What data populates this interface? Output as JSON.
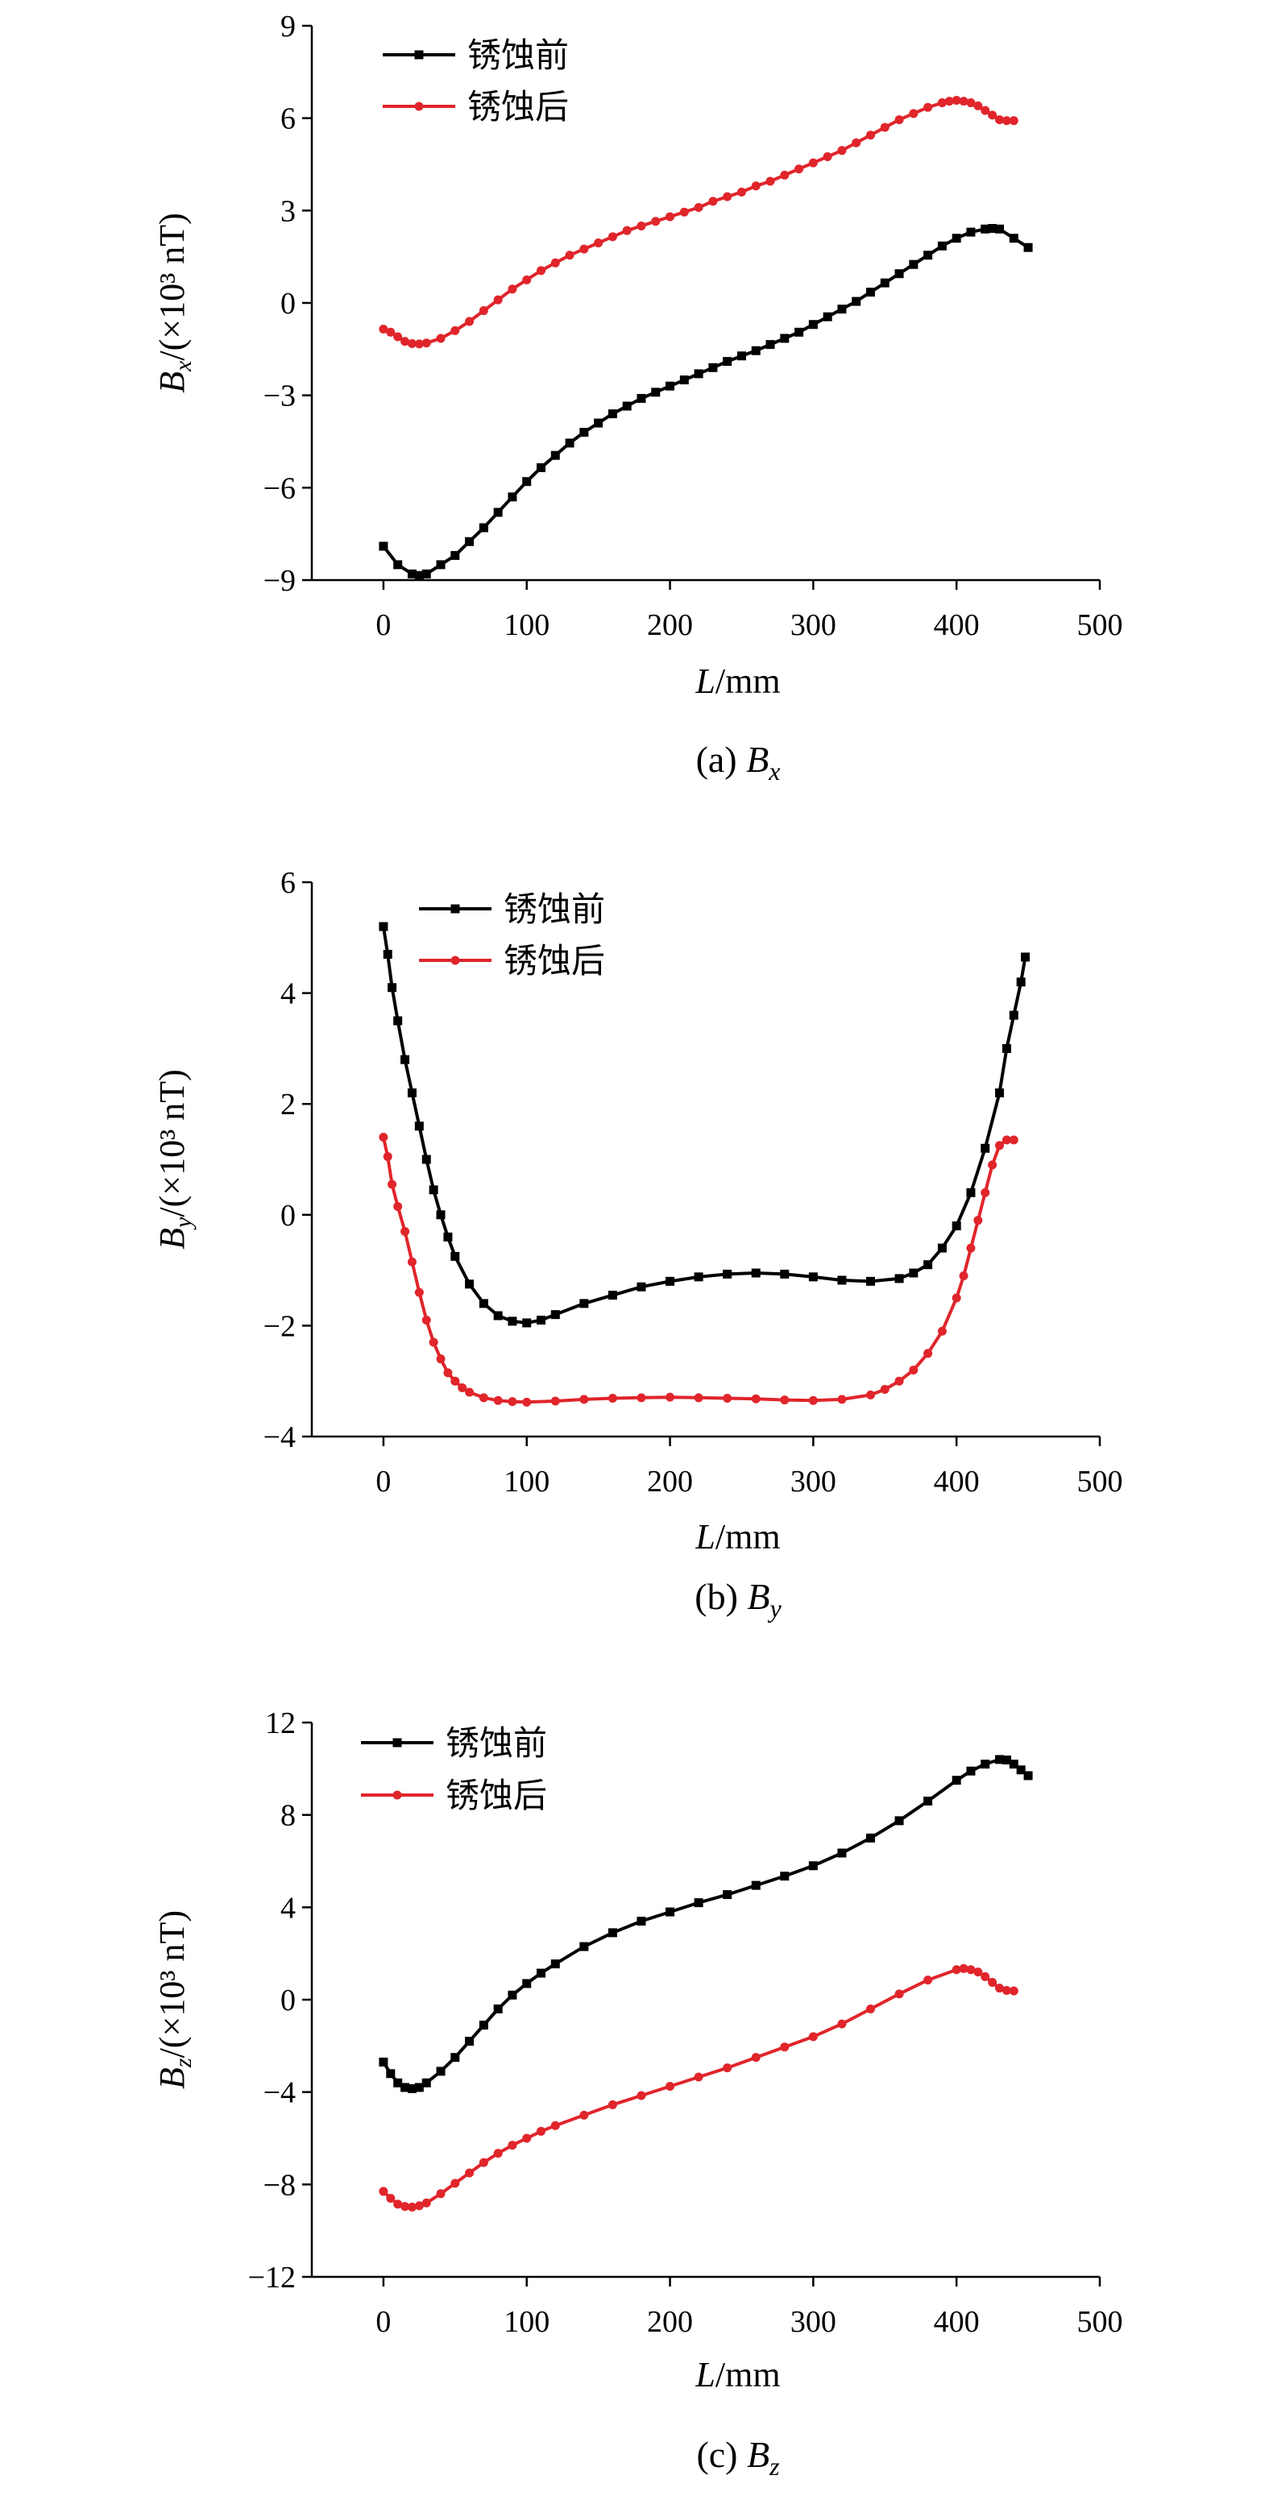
{
  "chart_data": [
    {
      "type": "line",
      "panel": "a",
      "caption": {
        "prefix": "(a) ",
        "sym": "B",
        "sub": "x"
      },
      "ylabel": {
        "sym": "B",
        "sub": "x",
        "rest": "/(×10³ nT)"
      },
      "xlabel": {
        "sym": "L",
        "rest": "/mm"
      },
      "xlim": [
        -50,
        500
      ],
      "ylim": [
        -9,
        9
      ],
      "xticks": [
        0,
        100,
        200,
        300,
        400,
        500
      ],
      "yticks": [
        -9,
        -6,
        -3,
        0,
        3,
        6,
        9
      ],
      "ytick_labels": [
        "−9",
        "−6",
        "−3",
        "0",
        "3",
        "6",
        "9"
      ],
      "grid": false,
      "legend_position": "top-left",
      "series": [
        {
          "name": "锈蚀前",
          "color": "#000000",
          "marker": "square",
          "x": [
            0,
            10,
            20,
            25,
            30,
            40,
            50,
            60,
            70,
            80,
            90,
            100,
            110,
            120,
            130,
            140,
            150,
            160,
            170,
            180,
            190,
            200,
            210,
            220,
            230,
            240,
            250,
            260,
            270,
            280,
            290,
            300,
            310,
            320,
            330,
            340,
            350,
            360,
            370,
            380,
            390,
            400,
            410,
            420,
            425,
            430,
            440,
            450
          ],
          "y": [
            -7.9,
            -8.5,
            -8.8,
            -8.85,
            -8.8,
            -8.5,
            -8.2,
            -7.75,
            -7.3,
            -6.8,
            -6.3,
            -5.8,
            -5.35,
            -4.95,
            -4.55,
            -4.2,
            -3.9,
            -3.6,
            -3.35,
            -3.1,
            -2.9,
            -2.7,
            -2.5,
            -2.3,
            -2.1,
            -1.9,
            -1.72,
            -1.55,
            -1.35,
            -1.15,
            -0.95,
            -0.7,
            -0.45,
            -0.2,
            0.05,
            0.35,
            0.65,
            0.95,
            1.25,
            1.55,
            1.85,
            2.1,
            2.3,
            2.4,
            2.42,
            2.4,
            2.1,
            1.8
          ]
        },
        {
          "name": "锈蚀后",
          "color": "#e0252b",
          "marker": "circle",
          "x": [
            0,
            5,
            10,
            15,
            20,
            25,
            30,
            40,
            50,
            60,
            70,
            80,
            90,
            100,
            110,
            120,
            130,
            140,
            150,
            160,
            170,
            180,
            190,
            200,
            210,
            220,
            230,
            240,
            250,
            260,
            270,
            280,
            290,
            300,
            310,
            320,
            330,
            340,
            350,
            360,
            370,
            380,
            390,
            395,
            400,
            405,
            410,
            415,
            420,
            425,
            430,
            435,
            440
          ],
          "y": [
            -0.85,
            -0.95,
            -1.1,
            -1.25,
            -1.32,
            -1.33,
            -1.3,
            -1.15,
            -0.9,
            -0.6,
            -0.25,
            0.1,
            0.45,
            0.75,
            1.05,
            1.3,
            1.55,
            1.75,
            1.95,
            2.15,
            2.35,
            2.5,
            2.65,
            2.8,
            2.95,
            3.1,
            3.3,
            3.45,
            3.6,
            3.8,
            3.95,
            4.15,
            4.35,
            4.55,
            4.75,
            4.95,
            5.2,
            5.45,
            5.7,
            5.95,
            6.15,
            6.35,
            6.5,
            6.55,
            6.58,
            6.55,
            6.5,
            6.4,
            6.25,
            6.1,
            5.95,
            5.92,
            5.92
          ]
        }
      ]
    },
    {
      "type": "line",
      "panel": "b",
      "caption": {
        "prefix": "(b) ",
        "sym": "B",
        "sub": "y"
      },
      "ylabel": {
        "sym": "B",
        "sub": "y",
        "rest": "/(×10³ nT)"
      },
      "xlabel": {
        "sym": "L",
        "rest": "/mm"
      },
      "xlim": [
        -50,
        500
      ],
      "ylim": [
        -4,
        6
      ],
      "xticks": [
        0,
        100,
        200,
        300,
        400,
        500
      ],
      "yticks": [
        -4,
        -2,
        0,
        2,
        4,
        6
      ],
      "ytick_labels": [
        "−4",
        "−2",
        "0",
        "2",
        "4",
        "6"
      ],
      "grid": false,
      "legend_position": "top-left",
      "series": [
        {
          "name": "锈蚀前",
          "color": "#000000",
          "marker": "square",
          "x": [
            0,
            3,
            6,
            10,
            15,
            20,
            25,
            30,
            35,
            40,
            45,
            50,
            60,
            70,
            80,
            90,
            100,
            110,
            120,
            140,
            160,
            180,
            200,
            220,
            240,
            260,
            280,
            300,
            320,
            340,
            360,
            370,
            380,
            390,
            400,
            410,
            420,
            430,
            435,
            440,
            445,
            448
          ],
          "y": [
            5.2,
            4.7,
            4.1,
            3.5,
            2.8,
            2.2,
            1.6,
            1.0,
            0.45,
            0.0,
            -0.4,
            -0.75,
            -1.25,
            -1.6,
            -1.82,
            -1.92,
            -1.95,
            -1.9,
            -1.8,
            -1.6,
            -1.45,
            -1.3,
            -1.2,
            -1.12,
            -1.07,
            -1.05,
            -1.07,
            -1.12,
            -1.18,
            -1.2,
            -1.15,
            -1.05,
            -0.9,
            -0.6,
            -0.2,
            0.4,
            1.2,
            2.2,
            3.0,
            3.6,
            4.2,
            4.65
          ]
        },
        {
          "name": "锈蚀后",
          "color": "#e0252b",
          "marker": "circle",
          "x": [
            0,
            3,
            6,
            10,
            15,
            20,
            25,
            30,
            35,
            40,
            45,
            50,
            55,
            60,
            70,
            80,
            90,
            100,
            120,
            140,
            160,
            180,
            200,
            220,
            240,
            260,
            280,
            300,
            320,
            340,
            350,
            360,
            370,
            380,
            390,
            400,
            405,
            410,
            415,
            420,
            425,
            430,
            435,
            440
          ],
          "y": [
            1.4,
            1.05,
            0.55,
            0.15,
            -0.3,
            -0.85,
            -1.4,
            -1.9,
            -2.3,
            -2.6,
            -2.85,
            -3.0,
            -3.12,
            -3.2,
            -3.3,
            -3.35,
            -3.37,
            -3.38,
            -3.36,
            -3.33,
            -3.31,
            -3.3,
            -3.29,
            -3.3,
            -3.31,
            -3.32,
            -3.34,
            -3.35,
            -3.33,
            -3.25,
            -3.15,
            -3.0,
            -2.8,
            -2.5,
            -2.1,
            -1.5,
            -1.1,
            -0.6,
            -0.1,
            0.4,
            0.9,
            1.25,
            1.35,
            1.35
          ]
        }
      ]
    },
    {
      "type": "line",
      "panel": "c",
      "caption": {
        "prefix": "(c) ",
        "sym": "B",
        "sub": "z"
      },
      "ylabel": {
        "sym": "B",
        "sub": "z",
        "rest": "/(×10³ nT)"
      },
      "xlabel": {
        "sym": "L",
        "rest": "/mm"
      },
      "xlim": [
        -50,
        500
      ],
      "ylim": [
        -12,
        12
      ],
      "xticks": [
        0,
        100,
        200,
        300,
        400,
        500
      ],
      "yticks": [
        -12,
        -8,
        -4,
        0,
        4,
        8,
        12
      ],
      "ytick_labels": [
        "−12",
        "−8",
        "−4",
        "0",
        "4",
        "8",
        "12"
      ],
      "grid": false,
      "legend_position": "top-left",
      "series": [
        {
          "name": "锈蚀前",
          "color": "#000000",
          "marker": "square",
          "x": [
            0,
            5,
            10,
            15,
            20,
            25,
            30,
            40,
            50,
            60,
            70,
            80,
            90,
            100,
            110,
            120,
            140,
            160,
            180,
            200,
            220,
            240,
            260,
            280,
            300,
            320,
            340,
            360,
            380,
            400,
            410,
            420,
            430,
            435,
            440,
            445,
            450
          ],
          "y": [
            -2.7,
            -3.2,
            -3.6,
            -3.8,
            -3.85,
            -3.8,
            -3.6,
            -3.1,
            -2.5,
            -1.8,
            -1.1,
            -0.4,
            0.2,
            0.7,
            1.15,
            1.55,
            2.3,
            2.9,
            3.4,
            3.8,
            4.2,
            4.55,
            4.95,
            5.35,
            5.8,
            6.35,
            7.0,
            7.75,
            8.6,
            9.5,
            9.9,
            10.2,
            10.4,
            10.38,
            10.2,
            9.95,
            9.7
          ]
        },
        {
          "name": "锈蚀后",
          "color": "#e0252b",
          "marker": "circle",
          "x": [
            0,
            5,
            10,
            15,
            20,
            25,
            30,
            40,
            50,
            60,
            70,
            80,
            90,
            100,
            110,
            120,
            140,
            160,
            180,
            200,
            220,
            240,
            260,
            280,
            300,
            320,
            340,
            360,
            380,
            400,
            405,
            410,
            415,
            420,
            425,
            430,
            435,
            440
          ],
          "y": [
            -8.3,
            -8.6,
            -8.85,
            -8.95,
            -8.98,
            -8.92,
            -8.8,
            -8.4,
            -7.95,
            -7.5,
            -7.05,
            -6.65,
            -6.3,
            -6.0,
            -5.7,
            -5.45,
            -5.0,
            -4.55,
            -4.15,
            -3.75,
            -3.35,
            -2.95,
            -2.5,
            -2.05,
            -1.6,
            -1.05,
            -0.4,
            0.25,
            0.85,
            1.3,
            1.35,
            1.3,
            1.2,
            1.0,
            0.75,
            0.5,
            0.4,
            0.38
          ]
        }
      ]
    }
  ]
}
